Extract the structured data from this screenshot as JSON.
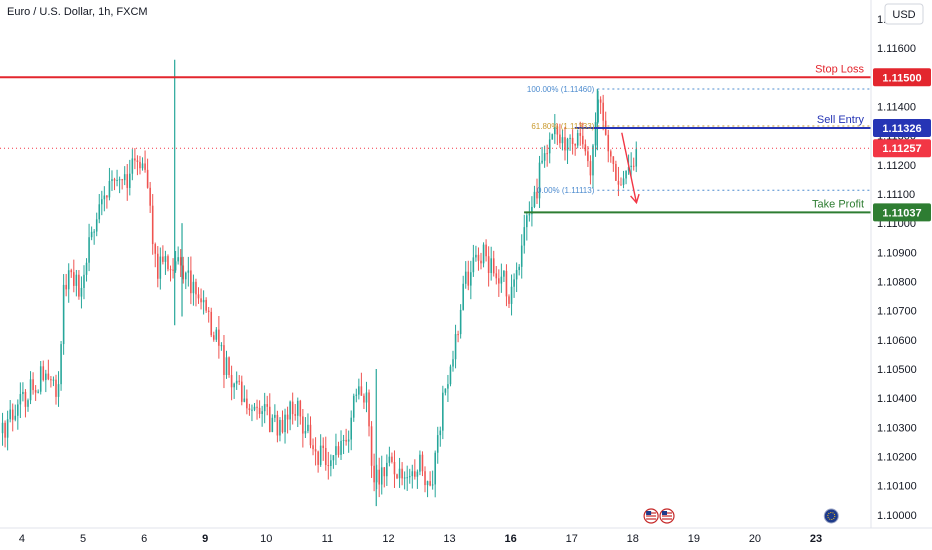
{
  "header": {
    "title": "Euro / U.S. Dollar, 1h, FXCM",
    "currency": "USD"
  },
  "colors": {
    "up": "#26a69a",
    "down": "#ef5350",
    "stop": "#e3262e",
    "entry": "#2635b5",
    "profit": "#2e7d32",
    "current": "#f23645",
    "fib_blue": "#4e8ccf",
    "fib_gold": "#c99a2e"
  },
  "chart_data": {
    "type": "candlestick",
    "title": "Euro / U.S. Dollar, 1h, FXCM",
    "ylim": [
      1.09955,
      1.11765
    ],
    "y_ticks": [
      "1.11700",
      "1.11600",
      "1.11500",
      "1.11400",
      "1.11300",
      "1.11200",
      "1.11100",
      "1.11000",
      "1.10900",
      "1.10800",
      "1.10700",
      "1.10600",
      "1.10500",
      "1.10400",
      "1.10300",
      "1.10200",
      "1.10100",
      "1.10000"
    ],
    "x_ticks": [
      {
        "label": "4",
        "x": 0.0
      },
      {
        "label": "5",
        "x": 1.0
      },
      {
        "label": "6",
        "x": 2.0
      },
      {
        "label": "9",
        "x": 3.0,
        "bold": true
      },
      {
        "label": "10",
        "x": 4.0
      },
      {
        "label": "11",
        "x": 5.0
      },
      {
        "label": "12",
        "x": 6.0
      },
      {
        "label": "13",
        "x": 7.0
      },
      {
        "label": "16",
        "x": 8.0,
        "bold": true
      },
      {
        "label": "17",
        "x": 9.0
      },
      {
        "label": "18",
        "x": 10.0
      },
      {
        "label": "19",
        "x": 11.0
      },
      {
        "label": "20",
        "x": 12.0
      },
      {
        "label": "23",
        "x": 13.0,
        "bold": true
      }
    ],
    "x_range": [
      -0.36,
      13.9
    ],
    "candles_per_day": 24,
    "last_candle_x": 10.08,
    "price_path": [
      [
        -0.36,
        1.1028
      ],
      [
        0.05,
        1.1041
      ],
      [
        0.35,
        1.1048
      ],
      [
        0.6,
        1.1043
      ],
      [
        0.7,
        1.1082
      ],
      [
        0.85,
        1.1079
      ],
      [
        1.0,
        1.1077
      ],
      [
        1.1,
        1.1095
      ],
      [
        1.35,
        1.111
      ],
      [
        1.6,
        1.1112
      ],
      [
        1.8,
        1.1118
      ],
      [
        1.92,
        1.1122
      ],
      [
        2.05,
        1.1118
      ],
      [
        2.12,
        1.1095
      ],
      [
        2.2,
        1.1083
      ],
      [
        2.35,
        1.1089
      ],
      [
        2.65,
        1.1082
      ],
      [
        2.95,
        1.1076
      ],
      [
        3.3,
        1.1052
      ],
      [
        3.6,
        1.104
      ],
      [
        3.9,
        1.1035
      ],
      [
        4.2,
        1.103
      ],
      [
        4.45,
        1.1038
      ],
      [
        4.6,
        1.1032
      ],
      [
        4.8,
        1.1022
      ],
      [
        5.1,
        1.1018
      ],
      [
        5.35,
        1.103
      ],
      [
        5.5,
        1.1045
      ],
      [
        5.65,
        1.104
      ],
      [
        5.75,
        1.1012
      ],
      [
        6.0,
        1.1018
      ],
      [
        6.25,
        1.101
      ],
      [
        6.5,
        1.1018
      ],
      [
        6.7,
        1.101
      ],
      [
        6.9,
        1.104
      ],
      [
        7.1,
        1.106
      ],
      [
        7.25,
        1.108
      ],
      [
        7.5,
        1.109
      ],
      [
        7.7,
        1.1085
      ],
      [
        7.9,
        1.108
      ],
      [
        8.0,
        1.1075
      ],
      [
        8.15,
        1.1088
      ],
      [
        8.3,
        1.1102
      ],
      [
        8.4,
        1.1108
      ],
      [
        8.5,
        1.1122
      ],
      [
        8.7,
        1.1132
      ],
      [
        8.95,
        1.1128
      ],
      [
        9.15,
        1.113
      ],
      [
        9.3,
        1.1118
      ],
      [
        9.45,
        1.1143
      ],
      [
        9.55,
        1.113
      ],
      [
        9.7,
        1.1115
      ],
      [
        9.85,
        1.1114
      ],
      [
        9.95,
        1.112
      ],
      [
        10.08,
        1.1126
      ]
    ],
    "highlight_wicks": [
      {
        "x": 2.5,
        "high": 1.1156,
        "low": 1.1065
      },
      {
        "x": 2.62,
        "high": 1.11,
        "low": 1.1068
      },
      {
        "x": 5.8,
        "high": 1.105,
        "low": 1.1003
      },
      {
        "x": 9.42,
        "high": 1.1146,
        "low": 1.1125
      }
    ],
    "levels": [
      {
        "name": "Stop Loss",
        "value": 1.115,
        "tag": "1.11500",
        "color_key": "stop"
      },
      {
        "name": "Sell Entry",
        "value": 1.11326,
        "tag": "1.11326",
        "color_key": "entry"
      },
      {
        "name": "Take Profit",
        "value": 1.11037,
        "tag": "1.11037",
        "color_key": "profit"
      }
    ],
    "current_price": {
      "value": 1.11257,
      "tag": "1.11257"
    },
    "fibonacci": [
      {
        "label": "100.00% (1.11460)",
        "value": 1.1146,
        "color_key": "fib_blue"
      },
      {
        "label": "61.80% (1.11333)",
        "value": 1.11333,
        "color_key": "fib_gold"
      },
      {
        "label": "0.00% (1.11113)",
        "value": 1.11113,
        "color_key": "fib_blue"
      }
    ],
    "arrow": {
      "from": [
        9.82,
        1.1131
      ],
      "to": [
        10.06,
        1.1107
      ]
    },
    "event_icons": [
      {
        "x": 10.3,
        "name": "us-flag-icon"
      },
      {
        "x": 10.56,
        "name": "us-flag-icon"
      },
      {
        "x": 13.25,
        "name": "eu-flag-icon"
      }
    ]
  }
}
